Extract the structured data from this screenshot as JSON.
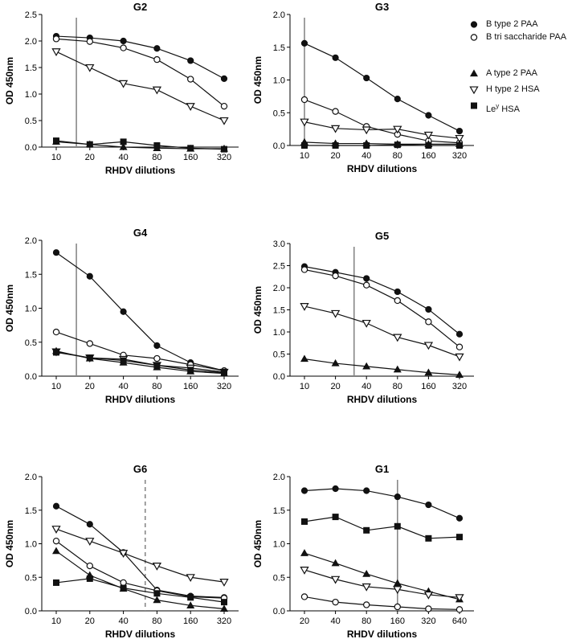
{
  "legend": [
    {
      "key": "b2",
      "label": "B type 2 PAA",
      "marker": "circle-filled"
    },
    {
      "key": "btri",
      "label": "B tri saccharide PAA",
      "marker": "circle-open"
    },
    {
      "key": "a2",
      "label": "A type 2 PAA",
      "marker": "triangle-up-filled"
    },
    {
      "key": "h2",
      "label": "H type 2 HSA",
      "marker": "triangle-down-open"
    },
    {
      "key": "ley",
      "label": "Le",
      "label_sup": "y",
      "label_tail": " HSA",
      "marker": "square-filled"
    }
  ],
  "chart_data": [
    {
      "id": "G2",
      "type": "line",
      "title": "G2",
      "xlabel": "RHDV dilutions",
      "ylabel": "OD 450nm",
      "categories": [
        "10",
        "20",
        "40",
        "80",
        "160",
        "320"
      ],
      "ylim": [
        0,
        2.5
      ],
      "yticks": [
        "0.0",
        "0.5",
        "1.0",
        "1.5",
        "2.0",
        "2.5"
      ],
      "cutoff_x": 0.6,
      "cutoff_style": "solid",
      "series": [
        {
          "key": "b2",
          "values": [
            2.09,
            2.06,
            2.0,
            1.86,
            1.63,
            1.29
          ]
        },
        {
          "key": "btri",
          "values": [
            2.04,
            1.99,
            1.87,
            1.65,
            1.28,
            0.77
          ]
        },
        {
          "key": "h2",
          "values": [
            1.8,
            1.5,
            1.2,
            1.08,
            0.77,
            0.5
          ]
        },
        {
          "key": "a2",
          "values": [
            0.1,
            0.05,
            0.0,
            -0.02,
            -0.03,
            -0.03
          ]
        },
        {
          "key": "ley",
          "values": [
            0.12,
            0.05,
            0.1,
            0.03,
            -0.02,
            -0.04
          ]
        }
      ]
    },
    {
      "id": "G3",
      "type": "line",
      "title": "G3",
      "xlabel": "RHDV dilutions",
      "ylabel": "OD 450nm",
      "categories": [
        "10",
        "20",
        "40",
        "80",
        "160",
        "320"
      ],
      "ylim": [
        0,
        2.0
      ],
      "yticks": [
        "0.0",
        "0.5",
        "1.0",
        "1.5",
        "2.0"
      ],
      "cutoff_x": 0.0,
      "cutoff_style": "solid",
      "series": [
        {
          "key": "b2",
          "values": [
            1.56,
            1.34,
            1.03,
            0.71,
            0.46,
            0.22
          ]
        },
        {
          "key": "btri",
          "values": [
            0.7,
            0.52,
            0.29,
            0.17,
            0.07,
            0.04
          ]
        },
        {
          "key": "h2",
          "values": [
            0.36,
            0.26,
            0.24,
            0.25,
            0.16,
            0.11
          ]
        },
        {
          "key": "a2",
          "values": [
            0.05,
            0.03,
            0.03,
            0.02,
            0.02,
            0.02
          ]
        },
        {
          "key": "ley",
          "values": [
            0.0,
            0.0,
            0.0,
            0.01,
            0.0,
            0.0
          ]
        }
      ]
    },
    {
      "id": "G4",
      "type": "line",
      "title": "G4",
      "xlabel": "RHDV dilutions",
      "ylabel": "OD 450nm",
      "categories": [
        "10",
        "20",
        "40",
        "80",
        "160",
        "320"
      ],
      "ylim": [
        0,
        2.0
      ],
      "yticks": [
        "0.0",
        "0.5",
        "1.0",
        "1.5",
        "2.0"
      ],
      "cutoff_x": 0.6,
      "cutoff_style": "solid",
      "series": [
        {
          "key": "b2",
          "values": [
            1.82,
            1.47,
            0.95,
            0.45,
            0.2,
            0.08
          ]
        },
        {
          "key": "btri",
          "values": [
            0.65,
            0.48,
            0.31,
            0.26,
            0.17,
            0.08
          ]
        },
        {
          "key": "h2",
          "values": [
            0.36,
            0.27,
            0.25,
            0.16,
            0.12,
            0.06
          ]
        },
        {
          "key": "a2",
          "values": [
            0.37,
            0.26,
            0.2,
            0.13,
            0.07,
            0.04
          ]
        },
        {
          "key": "ley",
          "values": [
            0.35,
            0.27,
            0.23,
            0.16,
            0.09,
            0.05
          ]
        }
      ]
    },
    {
      "id": "G5",
      "type": "line",
      "title": "G5",
      "xlabel": "RHDV dilutions",
      "ylabel": "OD 450nm",
      "categories": [
        "10",
        "20",
        "40",
        "80",
        "160",
        "320"
      ],
      "ylim": [
        0,
        3.0
      ],
      "yticks": [
        "0.0",
        "0.5",
        "1.0",
        "1.5",
        "2.0",
        "2.5",
        "3.0"
      ],
      "cutoff_x": 1.6,
      "cutoff_style": "solid",
      "series": [
        {
          "key": "b2",
          "values": [
            2.48,
            2.35,
            2.21,
            1.91,
            1.51,
            0.95
          ]
        },
        {
          "key": "btri",
          "values": [
            2.41,
            2.27,
            2.06,
            1.71,
            1.23,
            0.66
          ]
        },
        {
          "key": "h2",
          "values": [
            1.58,
            1.42,
            1.2,
            0.88,
            0.7,
            0.44
          ]
        },
        {
          "key": "a2",
          "values": [
            0.39,
            0.29,
            0.22,
            0.15,
            0.08,
            0.03
          ]
        }
      ]
    },
    {
      "id": "G6",
      "type": "line",
      "title": "G6",
      "xlabel": "RHDV dilutions",
      "ylabel": "OD 450nm",
      "categories": [
        "10",
        "20",
        "40",
        "80",
        "160",
        "320"
      ],
      "ylim": [
        0,
        2.0
      ],
      "yticks": [
        "0.0",
        "0.5",
        "1.0",
        "1.5",
        "2.0"
      ],
      "cutoff_x": 2.65,
      "cutoff_style": "dashed",
      "series": [
        {
          "key": "b2",
          "values": [
            1.56,
            1.29,
            0.87,
            0.31,
            0.22,
            0.2
          ]
        },
        {
          "key": "btri",
          "values": [
            1.04,
            0.67,
            0.42,
            0.3,
            0.21,
            0.19
          ]
        },
        {
          "key": "h2",
          "values": [
            1.22,
            1.04,
            0.86,
            0.67,
            0.5,
            0.43
          ]
        },
        {
          "key": "a2",
          "values": [
            0.89,
            0.53,
            0.33,
            0.16,
            0.08,
            0.03
          ]
        },
        {
          "key": "ley",
          "values": [
            0.42,
            0.48,
            0.34,
            0.26,
            0.2,
            0.13
          ]
        }
      ]
    },
    {
      "id": "G1",
      "type": "line",
      "title": "G1",
      "xlabel": "RHDV dilutions",
      "ylabel": "OD 450nm",
      "categories": [
        "20",
        "40",
        "80",
        "160",
        "320",
        "640"
      ],
      "ylim": [
        0,
        2.0
      ],
      "yticks": [
        "0.0",
        "0.5",
        "1.0",
        "1.5",
        "2.0"
      ],
      "cutoff_x": 3.0,
      "cutoff_style": "solid",
      "series": [
        {
          "key": "b2",
          "values": [
            1.79,
            1.82,
            1.79,
            1.7,
            1.58,
            1.38
          ]
        },
        {
          "key": "ley",
          "values": [
            1.33,
            1.4,
            1.2,
            1.26,
            1.08,
            1.1
          ]
        },
        {
          "key": "a2",
          "values": [
            0.86,
            0.71,
            0.55,
            0.41,
            0.29,
            0.17
          ]
        },
        {
          "key": "h2",
          "values": [
            0.61,
            0.47,
            0.36,
            0.32,
            0.24,
            0.2
          ]
        },
        {
          "key": "btri",
          "values": [
            0.21,
            0.13,
            0.09,
            0.06,
            0.03,
            0.02
          ]
        }
      ]
    }
  ]
}
